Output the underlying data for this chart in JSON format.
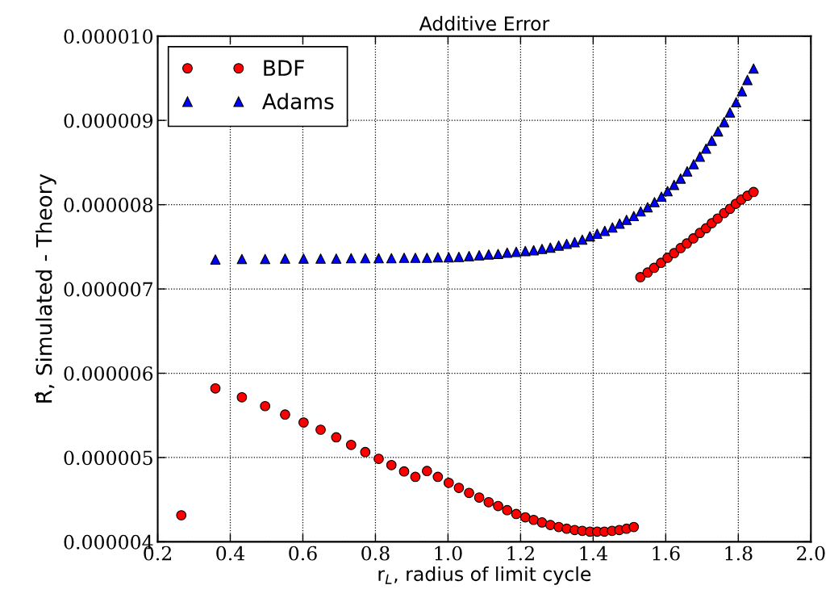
{
  "chart_data": {
    "type": "scatter",
    "title": "Additive Error",
    "xlabel": "r$_{L}$, radius of limit cycle",
    "ylabel": "R̂, Simulated - Theory",
    "xlim": [
      0.2,
      2.0
    ],
    "xticks": [
      0.2,
      0.4,
      0.6,
      0.8,
      {
        "value": 1,
        "label": "1.0"
      },
      1.2,
      1.4,
      1.6,
      1.8,
      {
        "value": 2,
        "label": "2.0"
      }
    ],
    "ylim": [
      4e-06,
      1e-05
    ],
    "yticks": [
      {
        "value": 4e-06,
        "label": "0.000004"
      },
      {
        "value": 5e-06,
        "label": "0.000005"
      },
      {
        "value": 6e-06,
        "label": "0.000006"
      },
      {
        "value": 7e-06,
        "label": "0.000007"
      },
      {
        "value": 8e-06,
        "label": "0.000008"
      },
      {
        "value": 9e-06,
        "label": "0.000009"
      },
      {
        "value": 1e-05,
        "label": "0.000010"
      }
    ],
    "grid": true,
    "legend": "top left",
    "series": [
      {
        "name": "BDF",
        "color": "#ff0000",
        "marker": "circle",
        "x": [
          0.265,
          0.359,
          0.432,
          0.496,
          0.551,
          0.602,
          0.649,
          0.692,
          0.733,
          0.772,
          0.809,
          0.844,
          0.879,
          0.91,
          0.942,
          0.972,
          1.002,
          1.03,
          1.058,
          1.086,
          1.112,
          1.138,
          1.163,
          1.188,
          1.213,
          1.236,
          1.259,
          1.282,
          1.305,
          1.327,
          1.349,
          1.37,
          1.391,
          1.411,
          1.431,
          1.452,
          1.472,
          1.492,
          1.512,
          1.53,
          1.55,
          1.568,
          1.587,
          1.605,
          1.623,
          1.641,
          1.658,
          1.676,
          1.694,
          1.711,
          1.727,
          1.743,
          1.761,
          1.777,
          1.793,
          1.808,
          1.825,
          1.842
        ],
        "values": [
          4.315e-06,
          5.82e-06,
          5.715e-06,
          5.61e-06,
          5.51e-06,
          5.415e-06,
          5.33e-06,
          5.24e-06,
          5.15e-06,
          5.065e-06,
          4.985e-06,
          4.91e-06,
          4.835e-06,
          4.77e-06,
          4.84e-06,
          4.77e-06,
          4.7e-06,
          4.64e-06,
          4.58e-06,
          4.525e-06,
          4.47e-06,
          4.425e-06,
          4.375e-06,
          4.33e-06,
          4.29e-06,
          4.26e-06,
          4.23e-06,
          4.2e-06,
          4.175e-06,
          4.155e-06,
          4.14e-06,
          4.13e-06,
          4.12e-06,
          4.12e-06,
          4.12e-06,
          4.13e-06,
          4.14e-06,
          4.155e-06,
          4.175e-06,
          7.14e-06,
          7.195e-06,
          7.25e-06,
          7.31e-06,
          7.37e-06,
          7.425e-06,
          7.485e-06,
          7.54e-06,
          7.6e-06,
          7.665e-06,
          7.72e-06,
          7.78e-06,
          7.835e-06,
          7.9e-06,
          7.95e-06,
          8.01e-06,
          8.06e-06,
          8.105e-06,
          8.15e-06
        ]
      },
      {
        "name": "Adams",
        "color": "#0000ff",
        "marker": "triangle",
        "x": [
          0.359,
          0.432,
          0.496,
          0.551,
          0.602,
          0.649,
          0.692,
          0.733,
          0.772,
          0.809,
          0.844,
          0.879,
          0.91,
          0.942,
          0.972,
          1.002,
          1.03,
          1.058,
          1.086,
          1.112,
          1.138,
          1.163,
          1.188,
          1.213,
          1.236,
          1.259,
          1.282,
          1.305,
          1.327,
          1.349,
          1.37,
          1.391,
          1.411,
          1.432,
          1.453,
          1.473,
          1.492,
          1.512,
          1.531,
          1.55,
          1.569,
          1.588,
          1.605,
          1.623,
          1.641,
          1.659,
          1.677,
          1.694,
          1.711,
          1.727,
          1.744,
          1.761,
          1.777,
          1.794,
          1.81,
          1.825,
          1.842
        ],
        "values": [
          7.35e-06,
          7.355e-06,
          7.355e-06,
          7.36e-06,
          7.36e-06,
          7.36e-06,
          7.36e-06,
          7.365e-06,
          7.365e-06,
          7.365e-06,
          7.365e-06,
          7.37e-06,
          7.37e-06,
          7.37e-06,
          7.375e-06,
          7.375e-06,
          7.38e-06,
          7.39e-06,
          7.4e-06,
          7.41e-06,
          7.415e-06,
          7.43e-06,
          7.44e-06,
          7.45e-06,
          7.46e-06,
          7.475e-06,
          7.49e-06,
          7.515e-06,
          7.535e-06,
          7.555e-06,
          7.585e-06,
          7.625e-06,
          7.655e-06,
          7.69e-06,
          7.73e-06,
          7.775e-06,
          7.82e-06,
          7.865e-06,
          7.92e-06,
          7.97e-06,
          8.03e-06,
          8.095e-06,
          8.16e-06,
          8.235e-06,
          8.31e-06,
          8.395e-06,
          8.48e-06,
          8.57e-06,
          8.665e-06,
          8.76e-06,
          8.87e-06,
          8.98e-06,
          9.095e-06,
          9.215e-06,
          9.345e-06,
          9.48e-06,
          9.615e-06
        ]
      }
    ]
  }
}
